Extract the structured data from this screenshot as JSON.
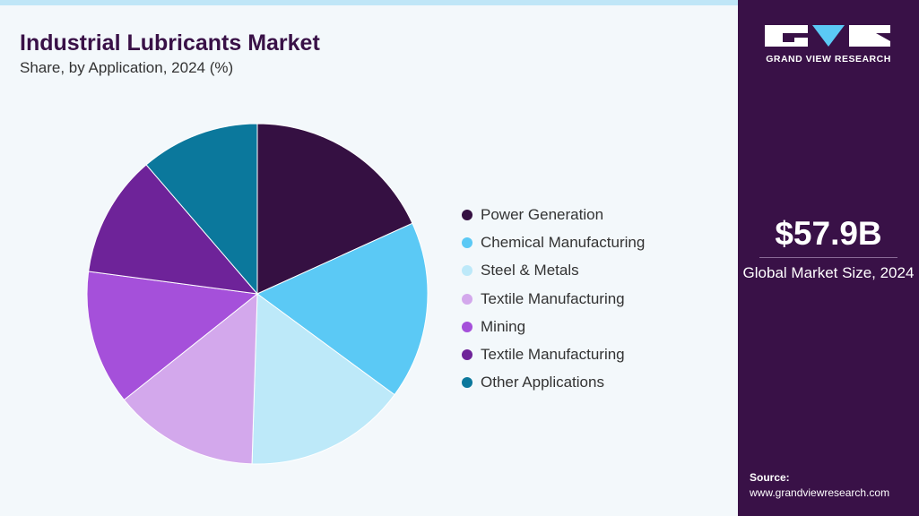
{
  "header": {
    "title": "Industrial Lubricants Market",
    "subtitle": "Share, by Application, 2024 (%)"
  },
  "chart_data": {
    "type": "pie",
    "title": "Industrial Lubricants Market",
    "subtitle": "Share, by Application, 2024 (%)",
    "legend_position": "right",
    "categories": [
      "Power Generation",
      "Chemical Manufacturing",
      "Steel & Metals",
      "Textile Manufacturing",
      "Mining",
      "Textile Manufacturing",
      "Other Applications"
    ],
    "values": [
      18.2,
      16.9,
      15.4,
      13.8,
      12.8,
      11.6,
      11.3
    ],
    "colors": [
      "#351042",
      "#5bc9f5",
      "#bde9f9",
      "#d3a8ec",
      "#a550da",
      "#6e2399",
      "#0b789c"
    ]
  },
  "sidebar": {
    "brand": "GRAND VIEW RESEARCH",
    "market_size": "$57.9B",
    "market_caption": "Global Market Size, 2024",
    "source_label": "Source:",
    "source_url": "www.grandviewresearch.com"
  }
}
